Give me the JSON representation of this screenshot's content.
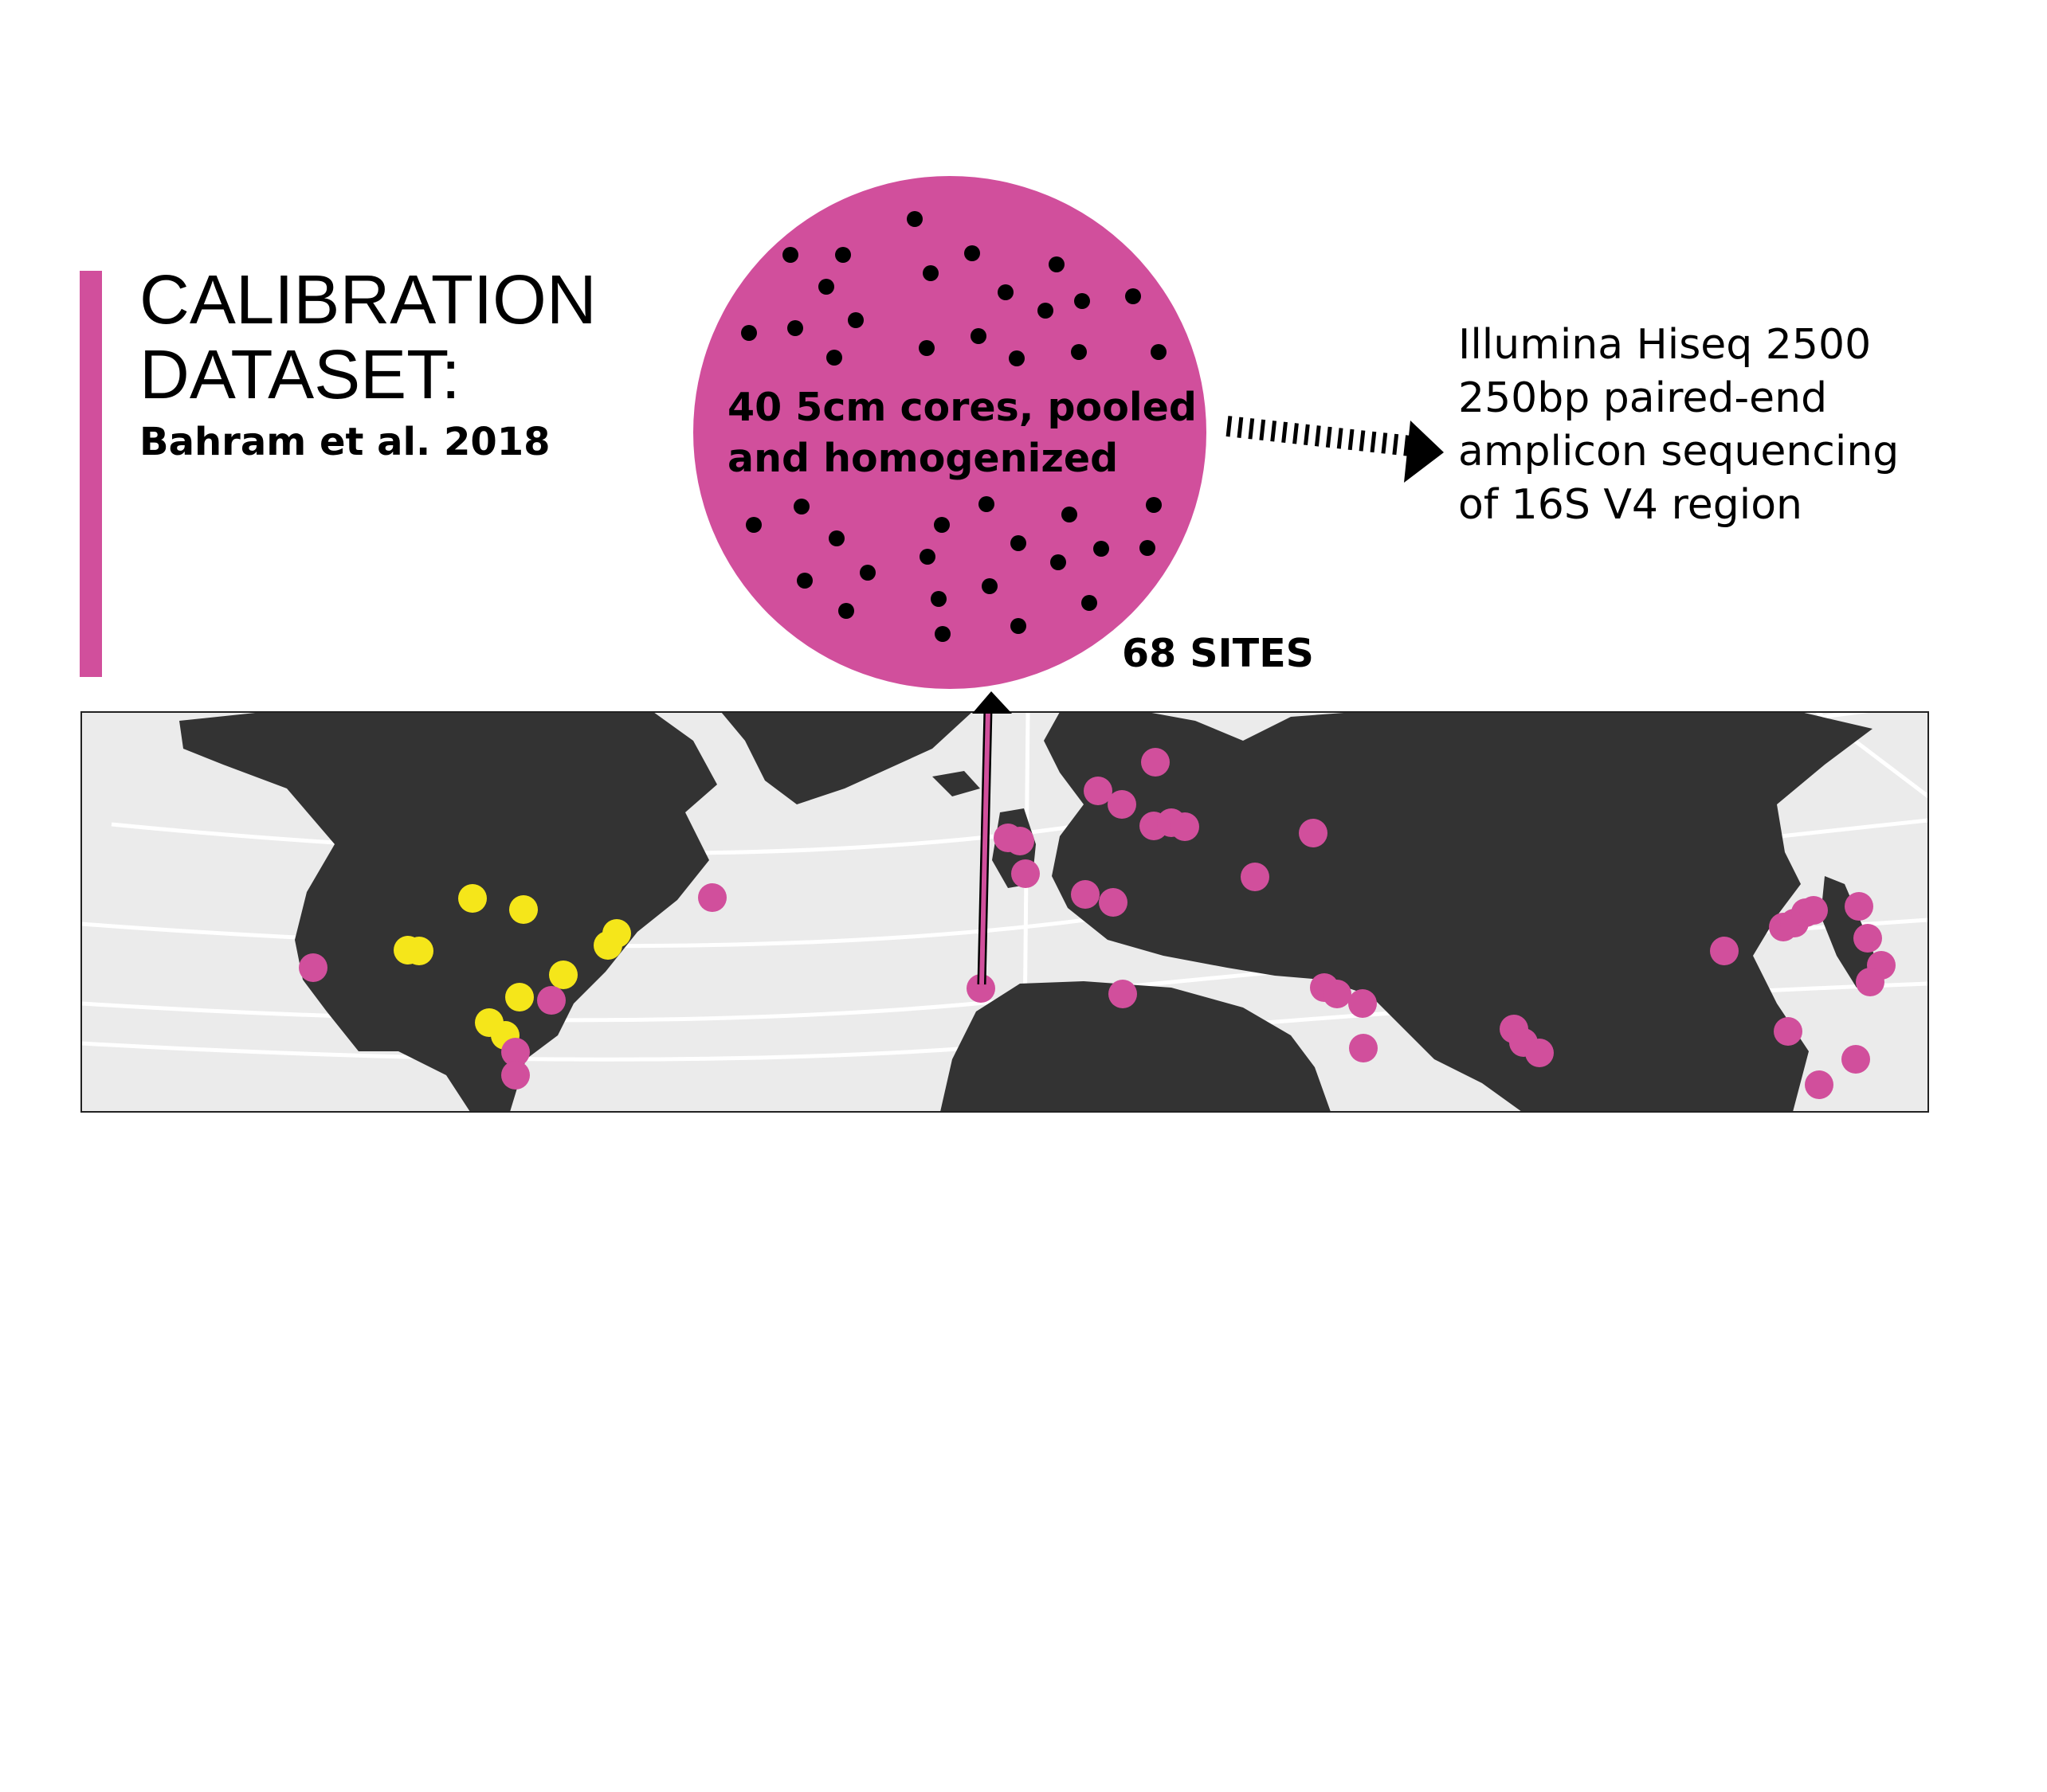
{
  "header": {
    "title_line1": "CALIBRATION",
    "title_line2": "DATASET:",
    "citation": "Bahram et al. 2018"
  },
  "sample": {
    "description_line1": "40 5cm cores, pooled",
    "description_line2": "and homogenized",
    "sites_label": "68 SITES"
  },
  "sequencing": {
    "lines": [
      "Illumina Hiseq 2500",
      "250bp paired-end",
      "amplicon sequencing",
      "of 16S V4 region"
    ]
  },
  "colors": {
    "accent": "#d14f9c",
    "secondary": "#f5e61a",
    "land": "#333333",
    "ocean": "#ebebeb",
    "graticule": "#ffffff",
    "core_dot": "#000000"
  }
}
